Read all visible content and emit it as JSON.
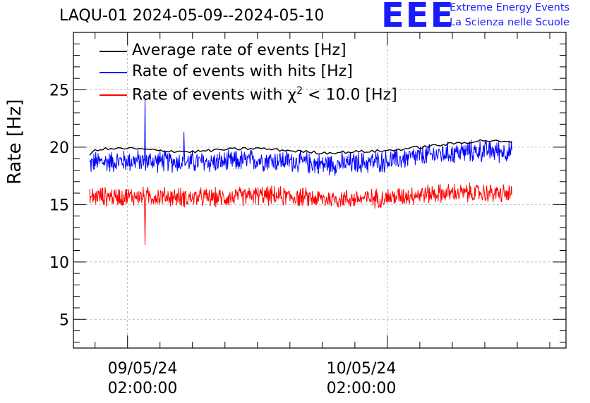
{
  "chart_data": {
    "type": "line",
    "title": "LAQU-01 2024-05-09--2024-05-10",
    "ylabel": "Rate [Hz]",
    "xlabel": "",
    "ylim": [
      2.5,
      30
    ],
    "yticks": [
      5,
      10,
      15,
      20,
      25
    ],
    "x_range_hours": [
      -5.0,
      40.5
    ],
    "xticks": [
      {
        "date": "09/05/24",
        "time": "02:00:00",
        "hour": 0
      },
      {
        "date": "10/05/24",
        "time": "02:00:00",
        "hour": 24
      }
    ],
    "x_data_range_hours": [
      -3.5,
      35.5
    ],
    "grid": true,
    "legend_position": "top-left",
    "series": [
      {
        "name": "Average rate of events [Hz]",
        "color": "#000000",
        "x": [
          -3.5,
          -3,
          0,
          3,
          6,
          9,
          12,
          15,
          18,
          21,
          24,
          27,
          30,
          33,
          35.5
        ],
        "values": [
          19.2,
          19.8,
          19.9,
          19.7,
          19.6,
          19.8,
          19.9,
          19.7,
          19.5,
          19.6,
          19.7,
          20.0,
          20.3,
          20.6,
          20.4
        ]
      },
      {
        "name": "Rate of events with hits [Hz]",
        "color": "#0000ff",
        "x": [
          -3.5,
          -3,
          0,
          3,
          6,
          9,
          12,
          15,
          18,
          21,
          24,
          27,
          30,
          33,
          35.5
        ],
        "values": [
          18.5,
          18.7,
          18.8,
          18.8,
          18.7,
          18.7,
          18.9,
          18.8,
          18.5,
          18.6,
          18.8,
          19.2,
          19.5,
          19.7,
          19.6
        ],
        "noise": 0.8,
        "spikes": [
          {
            "hour": 1.6,
            "value": 24.2
          },
          {
            "hour": 5.2,
            "value": 21.3
          }
        ]
      },
      {
        "name": "Rate of events with χ² < 10.0 [Hz]",
        "color": "#ff0000",
        "x": [
          -3.5,
          -3,
          0,
          3,
          6,
          9,
          12,
          15,
          18,
          21,
          24,
          27,
          30,
          33,
          35.5
        ],
        "values": [
          15.6,
          15.7,
          15.7,
          15.7,
          15.6,
          15.6,
          15.8,
          15.7,
          15.5,
          15.5,
          15.6,
          15.9,
          16.0,
          16.0,
          15.9
        ],
        "noise": 0.7,
        "spikes": [
          {
            "hour": 1.6,
            "value": 11.5
          }
        ]
      }
    ]
  },
  "legend": {
    "avg": "Average rate of events [Hz]",
    "hits": "Rate of events with hits [Hz]",
    "chi_prefix": "Rate of events with ",
    "chi_symbol": "χ",
    "chi_exp": "2",
    "chi_suffix": " < 10.0 [Hz]"
  },
  "logo": {
    "mark": "EEE",
    "line1": "Extreme Energy Events",
    "line2": "La Scienza nelle Scuole"
  },
  "colors": {
    "avg": "#000000",
    "hits": "#0000ff",
    "chi": "#ff0000",
    "logo": "#1a1aff"
  }
}
